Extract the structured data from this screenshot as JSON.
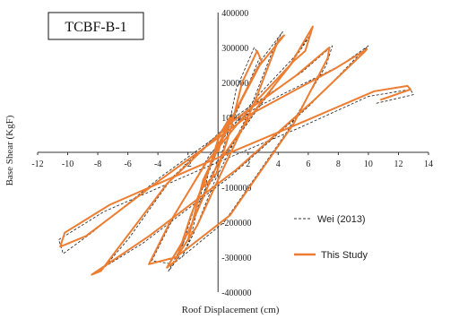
{
  "chart_data": {
    "type": "line",
    "title": "TCBF-B-1",
    "xlabel": "Roof Displacement (cm)",
    "ylabel": "Base Shear (KgF)",
    "xlim": [
      -12,
      14
    ],
    "ylim": [
      -400000,
      400000
    ],
    "x_ticks": [
      "-12",
      "-10",
      "-8",
      "-6",
      "-4",
      "-2",
      "0",
      "2",
      "4",
      "6",
      "8",
      "10",
      "12",
      "14"
    ],
    "y_ticks": [
      "-400000",
      "-300000",
      "-200000",
      "-100000",
      "0",
      "100000",
      "200000",
      "300000",
      "400000"
    ],
    "x_tick_values": [
      -12,
      -10,
      -8,
      -6,
      -4,
      -2,
      0,
      2,
      4,
      6,
      8,
      10,
      12,
      14
    ],
    "y_tick_values": [
      -400000,
      -300000,
      -200000,
      -100000,
      0,
      100000,
      200000,
      300000,
      400000
    ],
    "grid": false,
    "legend_position": "bottom-right",
    "colors": {
      "wei": "#333333",
      "study": "#ED7D31"
    },
    "series": [
      {
        "name": "Wei (2013)",
        "style": "dashed",
        "x": [
          0,
          0.3,
          0.9,
          0.2,
          -0.6,
          -0.9,
          -0.2,
          0.6,
          1.2,
          2.4,
          2.8,
          1.4,
          -0.8,
          -1.8,
          -2.4,
          -1.6,
          -0.2,
          2.0,
          3.8,
          4.3,
          2.8,
          0.2,
          -1.6,
          -2.6,
          -3.3,
          -2.2,
          -0.4,
          2.4,
          4.6,
          5.6,
          6.2,
          5.0,
          2.6,
          -0.6,
          -3.0,
          -4.4,
          -3.0,
          0.4,
          4.6,
          7.2,
          7.6,
          5.6,
          1.4,
          -3.0,
          -6.0,
          -7.6,
          -8.2,
          -5.0,
          0.8,
          6.0,
          9.4,
          10.0,
          8.2,
          2.6,
          -3.8,
          -8.4,
          -10.3,
          -10.6,
          -7.6,
          -1.2,
          5.4,
          10.0,
          12.8,
          13.0,
          10.5
        ],
        "y": [
          0,
          40000,
          110000,
          60000,
          -50000,
          -110000,
          -70000,
          50000,
          180000,
          300000,
          275000,
          130000,
          -60000,
          -240000,
          -300000,
          -230000,
          -80000,
          110000,
          310000,
          345000,
          260000,
          30000,
          -160000,
          -300000,
          -340000,
          -250000,
          -60000,
          110000,
          240000,
          300000,
          340000,
          270000,
          160000,
          -10000,
          -190000,
          -310000,
          -320000,
          -200000,
          60000,
          250000,
          305000,
          230000,
          110000,
          -70000,
          -250000,
          -330000,
          -345000,
          -260000,
          -70000,
          130000,
          280000,
          305000,
          250000,
          130000,
          -70000,
          -230000,
          -290000,
          -250000,
          -170000,
          -50000,
          70000,
          160000,
          180000,
          165000,
          140000
        ]
      },
      {
        "name": "This Study",
        "style": "solid",
        "x": [
          0,
          0.4,
          0.8,
          0.1,
          -0.7,
          -1.0,
          -0.1,
          0.8,
          1.6,
          2.6,
          2.9,
          1.2,
          -1.0,
          -2.0,
          -2.6,
          -1.4,
          0.2,
          2.4,
          4.0,
          4.4,
          2.6,
          0.0,
          -1.8,
          -2.8,
          -3.4,
          -2.0,
          0.0,
          2.8,
          5.0,
          5.8,
          6.3,
          4.8,
          2.4,
          -0.8,
          -3.2,
          -4.6,
          -2.8,
          0.8,
          5.0,
          7.3,
          7.4,
          5.2,
          1.0,
          -3.4,
          -6.4,
          -7.8,
          -8.4,
          -4.6,
          1.2,
          6.4,
          9.8,
          9.9,
          7.8,
          2.2,
          -4.2,
          -8.8,
          -10.5,
          -10.2,
          -7.2,
          -0.8,
          5.8,
          10.4,
          12.6,
          12.8,
          10.8
        ],
        "y": [
          0,
          60000,
          100000,
          50000,
          -60000,
          -100000,
          -60000,
          60000,
          200000,
          290000,
          260000,
          120000,
          -80000,
          -250000,
          -290000,
          -210000,
          -60000,
          140000,
          320000,
          335000,
          240000,
          20000,
          -180000,
          -310000,
          -330000,
          -230000,
          -30000,
          140000,
          260000,
          290000,
          360000,
          250000,
          140000,
          -30000,
          -200000,
          -320000,
          -300000,
          -180000,
          80000,
          270000,
          300000,
          220000,
          90000,
          -90000,
          -260000,
          -340000,
          -350000,
          -240000,
          -50000,
          150000,
          290000,
          295000,
          240000,
          110000,
          -90000,
          -240000,
          -270000,
          -230000,
          -150000,
          -30000,
          90000,
          175000,
          190000,
          180000,
          150000
        ]
      }
    ]
  }
}
